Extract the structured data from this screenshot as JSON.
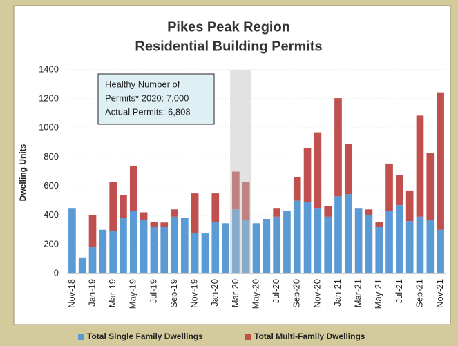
{
  "chart_data": {
    "type": "stacked_bar",
    "title": "Pikes Peak Region",
    "subtitle": "Residential Building Permits",
    "y_label": "Dwelling Units",
    "annotation": [
      "Healthy Number of",
      "Permits* 2020: 7,000",
      "Actual Permits: 6,808"
    ],
    "categories": [
      "Nov-18",
      null,
      "Jan-19",
      null,
      "Mar-19",
      null,
      "May-19",
      null,
      "Jul-19",
      null,
      "Sep-19",
      null,
      "Nov-19",
      null,
      "Jan-20",
      null,
      "Mar-20",
      null,
      "May-20",
      null,
      "Jul-20",
      null,
      "Sep-20",
      null,
      "Nov-20",
      null,
      "Jan-21",
      null,
      "Mar-21",
      null,
      "May-21",
      null,
      "Jul-21",
      null,
      "Sep-21",
      null,
      "Nov-21"
    ],
    "series": [
      {
        "name": "Total Single Family Dwellings",
        "color": "#5b9bd5",
        "values": [
          450,
          110,
          180,
          300,
          290,
          380,
          430,
          370,
          320,
          320,
          390,
          380,
          280,
          275,
          355,
          345,
          440,
          370,
          345,
          375,
          390,
          430,
          500,
          490,
          450,
          390,
          530,
          545,
          450,
          400,
          320,
          430,
          470,
          360,
          390,
          370,
          300
        ]
      },
      {
        "name": "Total Multi-Family Dwellings",
        "color": "#c0504d",
        "values": [
          0,
          0,
          220,
          0,
          340,
          160,
          310,
          50,
          35,
          30,
          50,
          0,
          270,
          0,
          195,
          0,
          260,
          260,
          0,
          0,
          60,
          0,
          160,
          370,
          520,
          75,
          675,
          345,
          0,
          40,
          35,
          325,
          205,
          210,
          695,
          460,
          945
        ]
      }
    ],
    "ylim": [
      0,
      1400
    ],
    "yticks": [
      0,
      200,
      400,
      600,
      800,
      1000,
      1200,
      1400
    ],
    "grid": true
  }
}
